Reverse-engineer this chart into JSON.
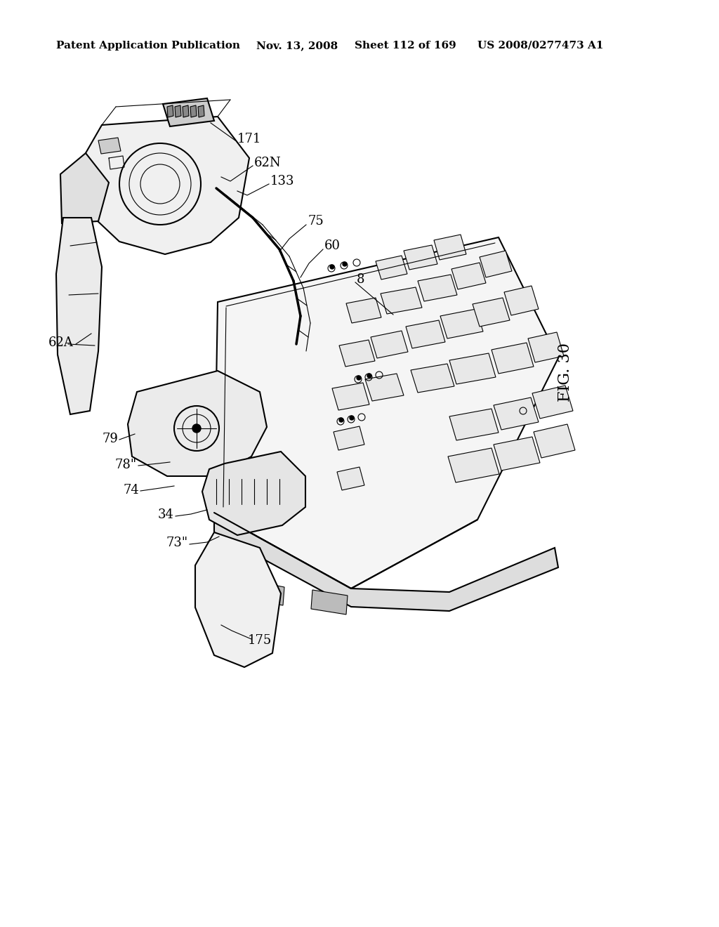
{
  "background_color": "#ffffff",
  "header_text": "Patent Application Publication",
  "header_date": "Nov. 13, 2008",
  "header_sheet": "Sheet 112 of 169",
  "header_patent": "US 2008/0277473 A1",
  "fig_label": "FIG. 30",
  "header_fontsize": 11,
  "label_fontsize": 13,
  "lw_main": 1.5,
  "lw_thin": 0.8,
  "lw_leader": 0.8
}
